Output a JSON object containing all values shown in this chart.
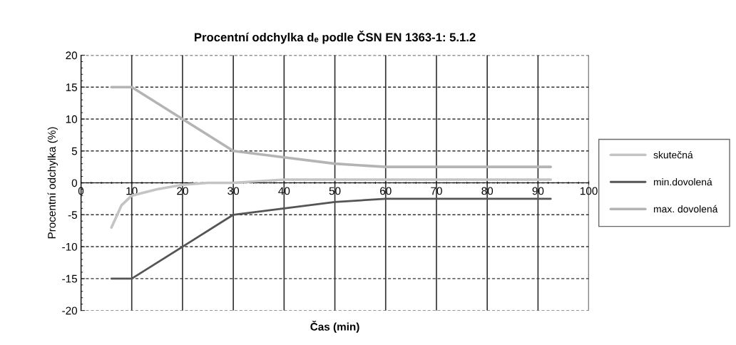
{
  "chart_data": {
    "type": "line",
    "title": "Procentní odchylka dₑ podle ČSN EN 1363-1: 5.1.2",
    "xlabel": "Čas (min)",
    "ylabel": "Procentní odchylka (%)",
    "xlim": [
      0,
      100
    ],
    "xticks": [
      0,
      10,
      20,
      30,
      40,
      50,
      60,
      70,
      80,
      90,
      100
    ],
    "ylim": [
      -20,
      20
    ],
    "yticks": [
      -20,
      -15,
      -10,
      -5,
      0,
      5,
      10,
      15,
      20
    ],
    "grid": true,
    "legend": "right",
    "marker": "none",
    "line_style": "solid",
    "series": [
      {
        "name": "skutečná",
        "color": "#c4c4c4",
        "x": [
          6,
          8,
          10,
          15,
          20,
          25,
          30,
          40,
          50,
          60,
          70,
          80,
          92.5
        ],
        "values": [
          -7,
          -3.5,
          -2,
          -1,
          -0.3,
          0,
          0,
          0.5,
          0.5,
          0.5,
          0.5,
          0.5,
          0.5
        ]
      },
      {
        "name": "min.dovolená",
        "color": "#555555",
        "x": [
          6,
          10,
          20,
          30,
          40,
          50,
          60,
          70,
          80,
          92.5
        ],
        "values": [
          -15,
          -15,
          -10,
          -5,
          -4,
          -3,
          -2.5,
          -2.5,
          -2.5,
          -2.5
        ]
      },
      {
        "name": "max. dovolená",
        "color": "#b4b4b4",
        "x": [
          6,
          10,
          20,
          30,
          40,
          50,
          60,
          70,
          80,
          92.5
        ],
        "values": [
          15,
          15,
          10,
          5,
          4,
          3,
          2.5,
          2.5,
          2.5,
          2.5
        ]
      }
    ]
  }
}
